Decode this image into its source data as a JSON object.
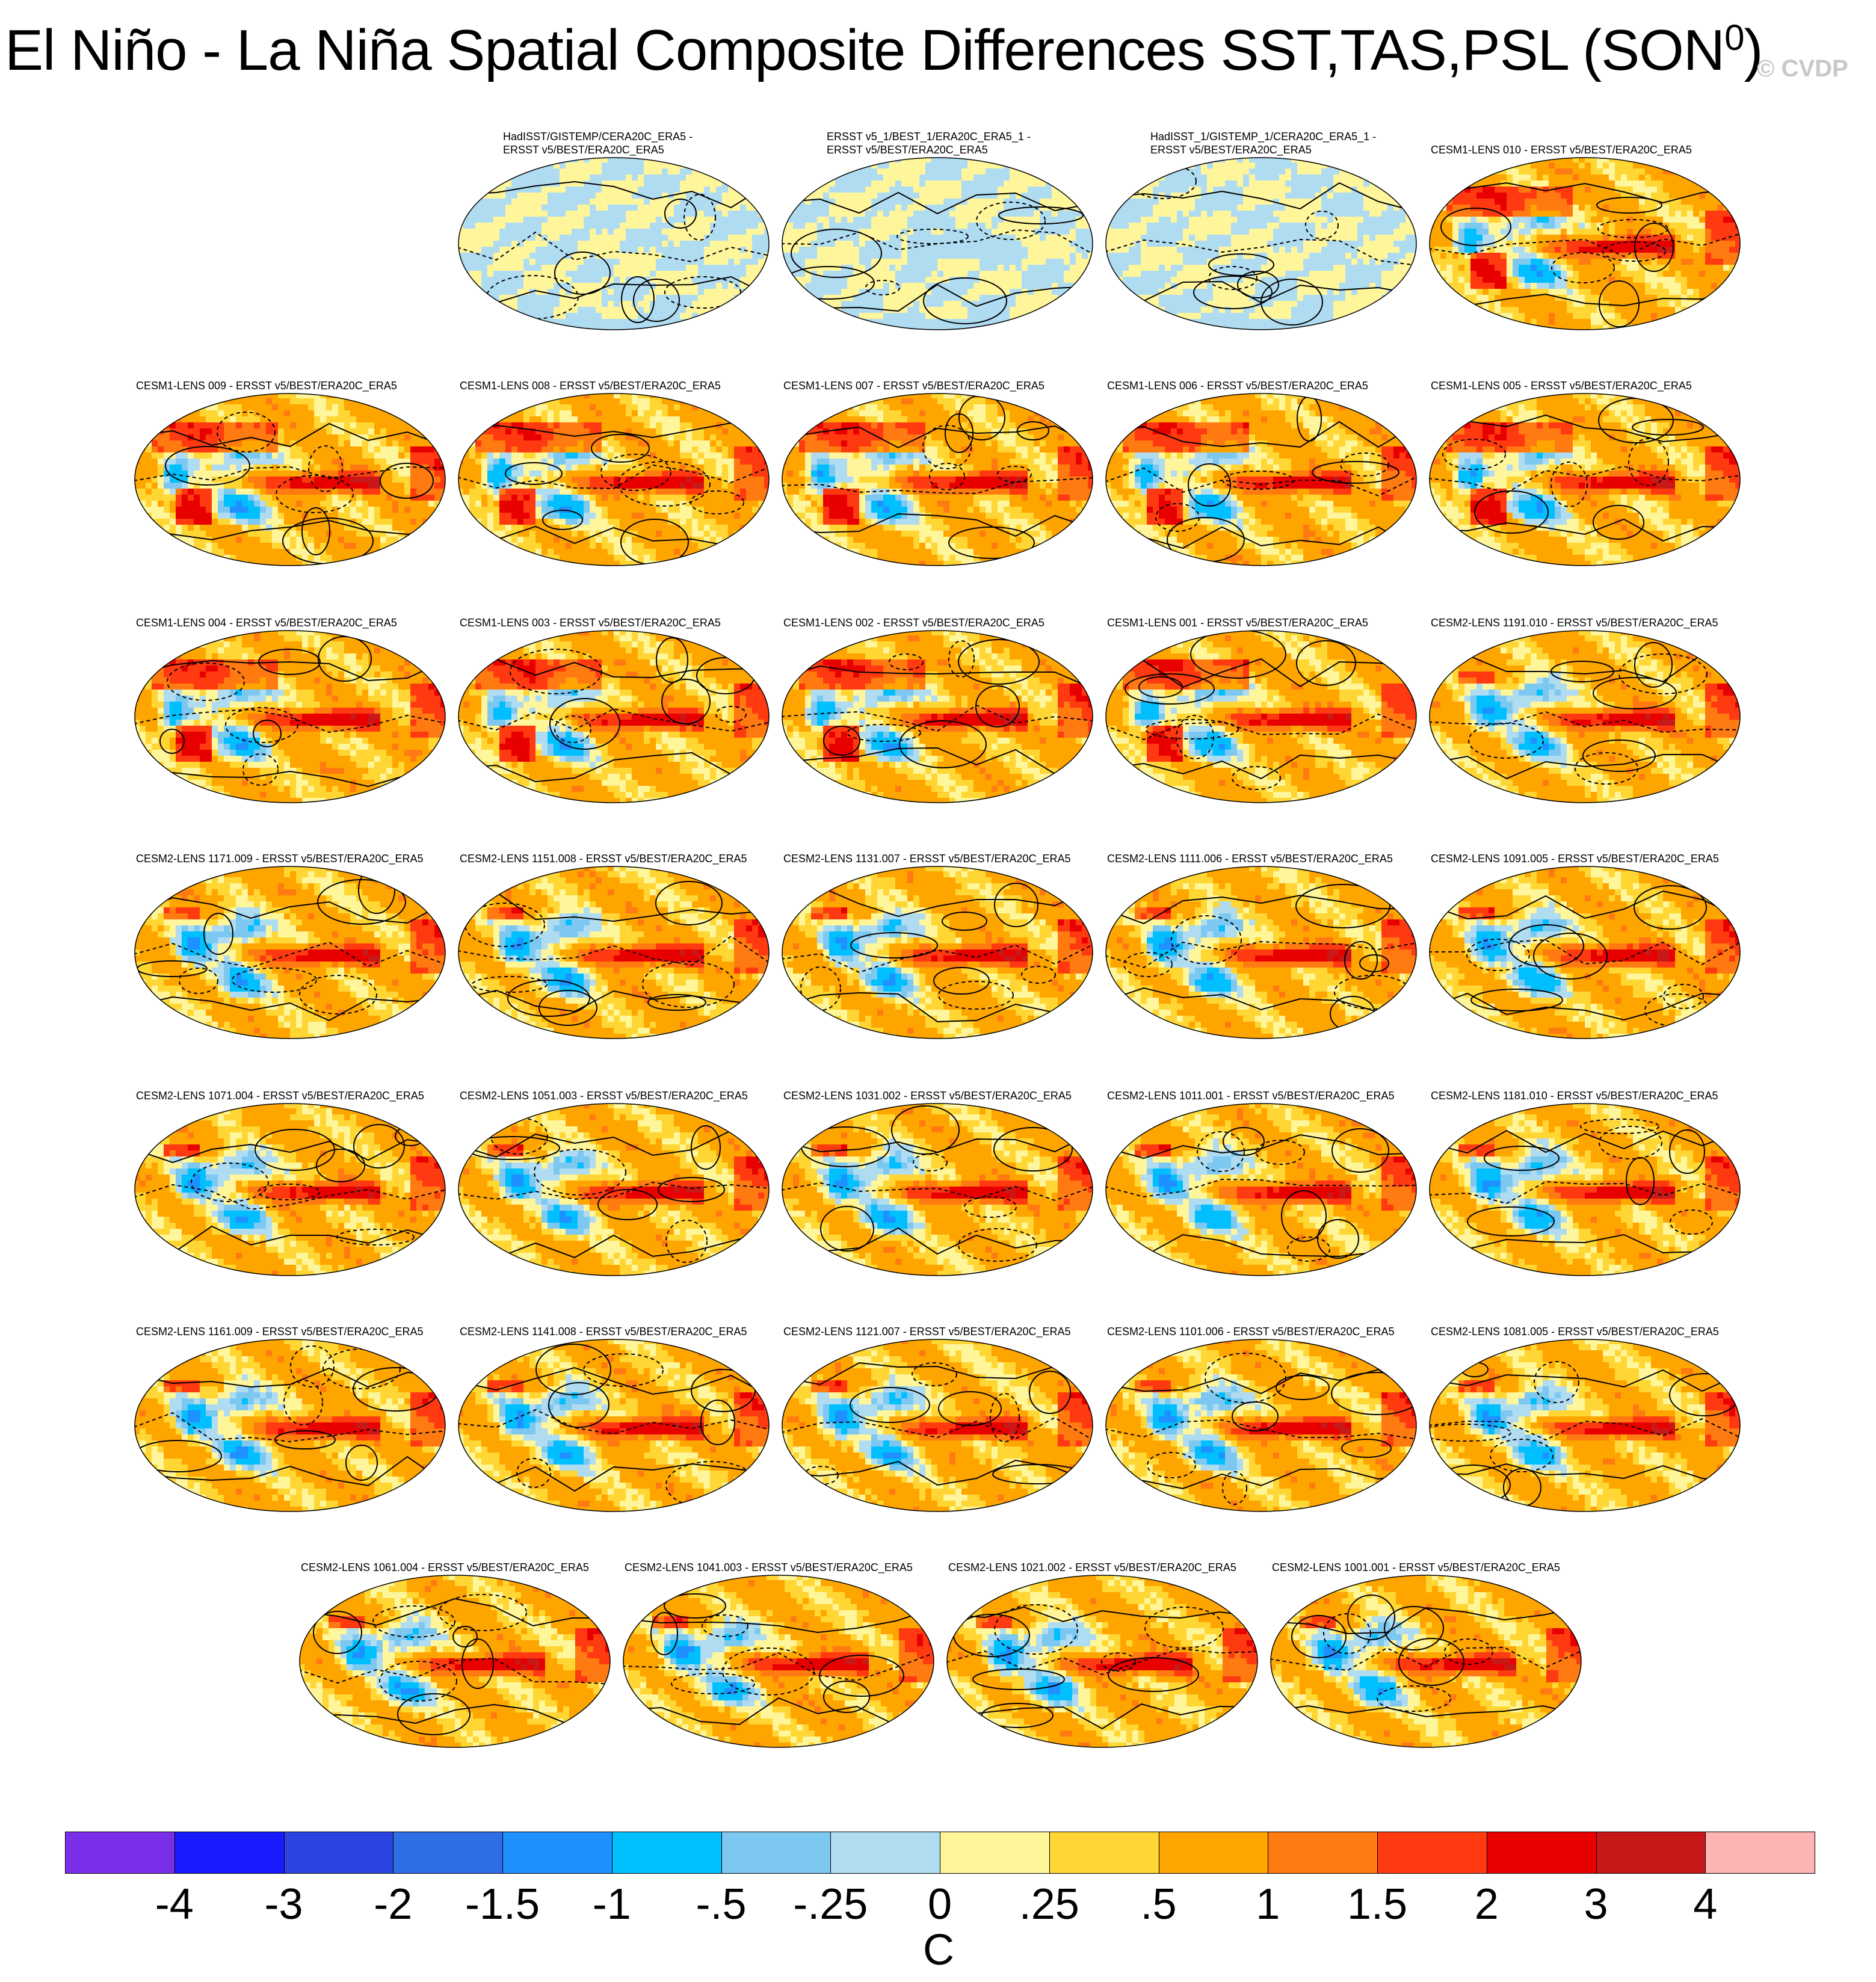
{
  "title_main": "El Niño - La Niña Spatial Composite Differences SST,TAS,PSL (SON",
  "title_sup": "0",
  "title_end": ")",
  "watermark": "© CVDP",
  "chart_data": {
    "type": "heatmap",
    "title": "El Niño - La Niña Spatial Composite Differences SST,TAS,PSL (SON0)",
    "colorbar": {
      "unit": "C",
      "tick_labels": [
        "-4",
        "-3",
        "-2",
        "-1.5",
        "-1",
        "-.5",
        "-.25",
        "0",
        ".25",
        ".5",
        "1",
        "1.5",
        "2",
        "3",
        "4"
      ],
      "levels": [
        -4,
        -3,
        -2,
        -1.5,
        -1,
        -0.5,
        -0.25,
        0,
        0.25,
        0.5,
        1,
        1.5,
        2,
        3,
        4
      ],
      "colors": [
        "#7b2ee8",
        "#1a1aff",
        "#2b46e0",
        "#2f6fe6",
        "#1e90ff",
        "#00bfff",
        "#7cc8f0",
        "#b0dcf2",
        "#fff59b",
        "#ffd633",
        "#ffa500",
        "#ff7a10",
        "#ff3a10",
        "#e80000",
        "#c81818",
        "#ffb4b4"
      ]
    },
    "panels": [
      {
        "label": "HadISST/GISTEMP/CERA20C_ERA5 -\nERSST v5/BEST/ERA20C_ERA5",
        "pattern": "obs_diff",
        "amp": 0.3
      },
      {
        "label": "ERSST v5_1/BEST_1/ERA20C_ERA5_1 -\nERSST v5/BEST/ERA20C_ERA5",
        "pattern": "obs_diff2",
        "amp": 0.35
      },
      {
        "label": "HadISST_1/GISTEMP_1/CERA20C_ERA5_1 -\nERSST v5/BEST/ERA20C_ERA5",
        "pattern": "obs_diff",
        "amp": 0.25
      },
      {
        "label": "CESM1-LENS 010 - ERSST v5/BEST/ERA20C_ERA5",
        "pattern": "lens1",
        "amp": 1
      },
      {
        "label": "CESM1-LENS 009 - ERSST v5/BEST/ERA20C_ERA5",
        "pattern": "lens1",
        "amp": 1
      },
      {
        "label": "CESM1-LENS 008 - ERSST v5/BEST/ERA20C_ERA5",
        "pattern": "lens1",
        "amp": 1
      },
      {
        "label": "CESM1-LENS 007 - ERSST v5/BEST/ERA20C_ERA5",
        "pattern": "lens1",
        "amp": 1
      },
      {
        "label": "CESM1-LENS 006 - ERSST v5/BEST/ERA20C_ERA5",
        "pattern": "lens1",
        "amp": 1
      },
      {
        "label": "CESM1-LENS 005 - ERSST v5/BEST/ERA20C_ERA5",
        "pattern": "lens1",
        "amp": 1
      },
      {
        "label": "CESM1-LENS 004 - ERSST v5/BEST/ERA20C_ERA5",
        "pattern": "lens1",
        "amp": 1
      },
      {
        "label": "CESM1-LENS 003 - ERSST v5/BEST/ERA20C_ERA5",
        "pattern": "lens1",
        "amp": 1
      },
      {
        "label": "CESM1-LENS 002 - ERSST v5/BEST/ERA20C_ERA5",
        "pattern": "lens1",
        "amp": 1
      },
      {
        "label": "CESM1-LENS 001 - ERSST v5/BEST/ERA20C_ERA5",
        "pattern": "lens1",
        "amp": 1
      },
      {
        "label": "CESM2-LENS 1191.010 - ERSST v5/BEST/ERA20C_ERA5",
        "pattern": "lens2",
        "amp": 1
      },
      {
        "label": "CESM2-LENS 1171.009 - ERSST v5/BEST/ERA20C_ERA5",
        "pattern": "lens2",
        "amp": 1
      },
      {
        "label": "CESM2-LENS 1151.008 - ERSST v5/BEST/ERA20C_ERA5",
        "pattern": "lens2",
        "amp": 1
      },
      {
        "label": "CESM2-LENS 1131.007 - ERSST v5/BEST/ERA20C_ERA5",
        "pattern": "lens2",
        "amp": 1
      },
      {
        "label": "CESM2-LENS 1111.006 - ERSST v5/BEST/ERA20C_ERA5",
        "pattern": "lens2",
        "amp": 1
      },
      {
        "label": "CESM2-LENS 1091.005 - ERSST v5/BEST/ERA20C_ERA5",
        "pattern": "lens2",
        "amp": 1
      },
      {
        "label": "CESM2-LENS 1071.004 - ERSST v5/BEST/ERA20C_ERA5",
        "pattern": "lens2",
        "amp": 1
      },
      {
        "label": "CESM2-LENS 1051.003 - ERSST v5/BEST/ERA20C_ERA5",
        "pattern": "lens2",
        "amp": 1
      },
      {
        "label": "CESM2-LENS 1031.002 - ERSST v5/BEST/ERA20C_ERA5",
        "pattern": "lens2",
        "amp": 1
      },
      {
        "label": "CESM2-LENS 1011.001 - ERSST v5/BEST/ERA20C_ERA5",
        "pattern": "lens2",
        "amp": 1
      },
      {
        "label": "CESM2-LENS 1181.010 - ERSST v5/BEST/ERA20C_ERA5",
        "pattern": "lens2",
        "amp": 1
      },
      {
        "label": "CESM2-LENS 1161.009 - ERSST v5/BEST/ERA20C_ERA5",
        "pattern": "lens2",
        "amp": 1
      },
      {
        "label": "CESM2-LENS 1141.008 - ERSST v5/BEST/ERA20C_ERA5",
        "pattern": "lens2",
        "amp": 1
      },
      {
        "label": "CESM2-LENS 1121.007 - ERSST v5/BEST/ERA20C_ERA5",
        "pattern": "lens2",
        "amp": 1
      },
      {
        "label": "CESM2-LENS 1101.006 - ERSST v5/BEST/ERA20C_ERA5",
        "pattern": "lens2",
        "amp": 1
      },
      {
        "label": "CESM2-LENS 1081.005 - ERSST v5/BEST/ERA20C_ERA5",
        "pattern": "lens2",
        "amp": 1
      },
      {
        "label": "CESM2-LENS 1061.004 - ERSST v5/BEST/ERA20C_ERA5",
        "pattern": "lens2",
        "amp": 1
      },
      {
        "label": "CESM2-LENS 1041.003 - ERSST v5/BEST/ERA20C_ERA5",
        "pattern": "lens2",
        "amp": 1
      },
      {
        "label": "CESM2-LENS 1021.002 - ERSST v5/BEST/ERA20C_ERA5",
        "pattern": "lens2",
        "amp": 1
      },
      {
        "label": "CESM2-LENS 1001.001 - ERSST v5/BEST/ERA20C_ERA5",
        "pattern": "lens2",
        "amp": 1
      }
    ]
  }
}
